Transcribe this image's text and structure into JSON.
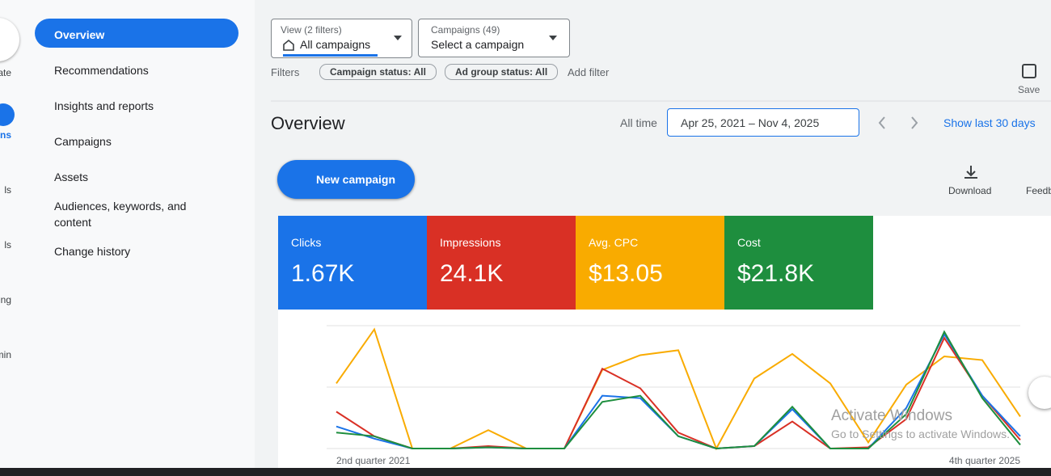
{
  "rail": [
    "ate",
    "aigns",
    "ls",
    "ls",
    "ng",
    "min"
  ],
  "nav": [
    "Overview",
    "Recommendations",
    "Insights and reports",
    "Campaigns",
    "Assets",
    "Audiences, keywords, and content",
    "Change history"
  ],
  "header": {
    "view_label": "View (2 filters)",
    "view_value": "All campaigns",
    "campaigns_label": "Campaigns (49)",
    "campaigns_value": "Select a campaign",
    "filters": "Filters",
    "chips": [
      "Campaign status: All",
      "Ad group status: All"
    ],
    "add_filter": "Add filter",
    "save": "Save"
  },
  "overview": {
    "title": "Overview",
    "range_label": "All time",
    "date_range": "Apr 25, 2021 – Nov 4, 2025",
    "show_last": "Show last 30 days",
    "new_campaign": "New campaign",
    "download": "Download",
    "feedback": "Feedb"
  },
  "metrics": [
    {
      "name": "Clicks",
      "value": "1.67K",
      "color": "#1a73e8"
    },
    {
      "name": "Impressions",
      "value": "24.1K",
      "color": "#d93025"
    },
    {
      "name": "Avg. CPC",
      "value": "$13.05",
      "color": "#f9ab00"
    },
    {
      "name": "Cost",
      "value": "$21.8K",
      "color": "#1e8e3e"
    }
  ],
  "chart_data": {
    "type": "line",
    "categories": [
      "2nd quarter 2021",
      null,
      null,
      null,
      null,
      null,
      null,
      null,
      null,
      null,
      null,
      null,
      null,
      null,
      null,
      null,
      null,
      null,
      "4th quarter 2025"
    ],
    "series": [
      {
        "name": "Avg. CPC",
        "color": "#f9ab00",
        "values": [
          53,
          97,
          0,
          0,
          15,
          0,
          0,
          64,
          76,
          80,
          0,
          57,
          77,
          53,
          5,
          52,
          75,
          72,
          26
        ]
      },
      {
        "name": "Impressions",
        "color": "#d93025",
        "values": [
          30,
          10,
          0,
          0,
          2,
          0,
          0,
          65,
          49,
          13,
          0,
          2,
          22,
          0,
          1,
          24,
          90,
          43,
          7
        ]
      },
      {
        "name": "Clicks",
        "color": "#1a73e8",
        "values": [
          18,
          8,
          0,
          0,
          1,
          0,
          0,
          43,
          41,
          10,
          0,
          2,
          32,
          0,
          0,
          33,
          93,
          43,
          10
        ]
      },
      {
        "name": "Cost",
        "color": "#1e8e3e",
        "values": [
          13,
          10,
          0,
          0,
          1,
          0,
          0,
          38,
          43,
          10,
          0,
          2,
          34,
          0,
          0,
          28,
          95,
          41,
          3
        ]
      }
    ],
    "ylim": [
      0,
      100
    ],
    "grid": true
  },
  "watermark": {
    "title": "Activate Windows",
    "subtitle": "Go to Settings to activate Windows."
  }
}
